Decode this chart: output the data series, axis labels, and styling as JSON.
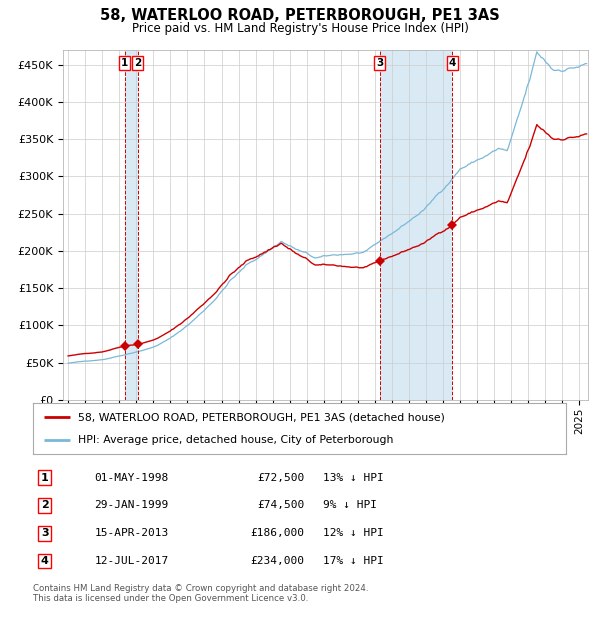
{
  "title": "58, WATERLOO ROAD, PETERBOROUGH, PE1 3AS",
  "subtitle": "Price paid vs. HM Land Registry's House Price Index (HPI)",
  "ylabel_ticks": [
    "£0",
    "£50K",
    "£100K",
    "£150K",
    "£200K",
    "£250K",
    "£300K",
    "£350K",
    "£400K",
    "£450K"
  ],
  "ytick_values": [
    0,
    50000,
    100000,
    150000,
    200000,
    250000,
    300000,
    350000,
    400000,
    450000
  ],
  "ylim": [
    0,
    470000
  ],
  "xlim_start": 1994.7,
  "xlim_end": 2025.5,
  "transactions": [
    {
      "label": "1",
      "date": "01-MAY-1998",
      "year": 1998.33,
      "price": 72500,
      "pct": "13%"
    },
    {
      "label": "2",
      "date": "29-JAN-1999",
      "year": 1999.08,
      "price": 74500,
      "pct": "9%"
    },
    {
      "label": "3",
      "date": "15-APR-2013",
      "year": 2013.29,
      "price": 186000,
      "pct": "12%"
    },
    {
      "label": "4",
      "date": "12-JUL-2017",
      "year": 2017.54,
      "price": 234000,
      "pct": "17%"
    }
  ],
  "line_color_hpi": "#7ab8d9",
  "line_color_paid": "#cc0000",
  "marker_color": "#cc0000",
  "dashed_color": "#cc0000",
  "shade_color": "#daeaf5",
  "legend_line1": "58, WATERLOO ROAD, PETERBOROUGH, PE1 3AS (detached house)",
  "legend_line2": "HPI: Average price, detached house, City of Peterborough",
  "footer": "Contains HM Land Registry data © Crown copyright and database right 2024.\nThis data is licensed under the Open Government Licence v3.0.",
  "grid_color": "#cccccc",
  "background_color": "#ffffff"
}
